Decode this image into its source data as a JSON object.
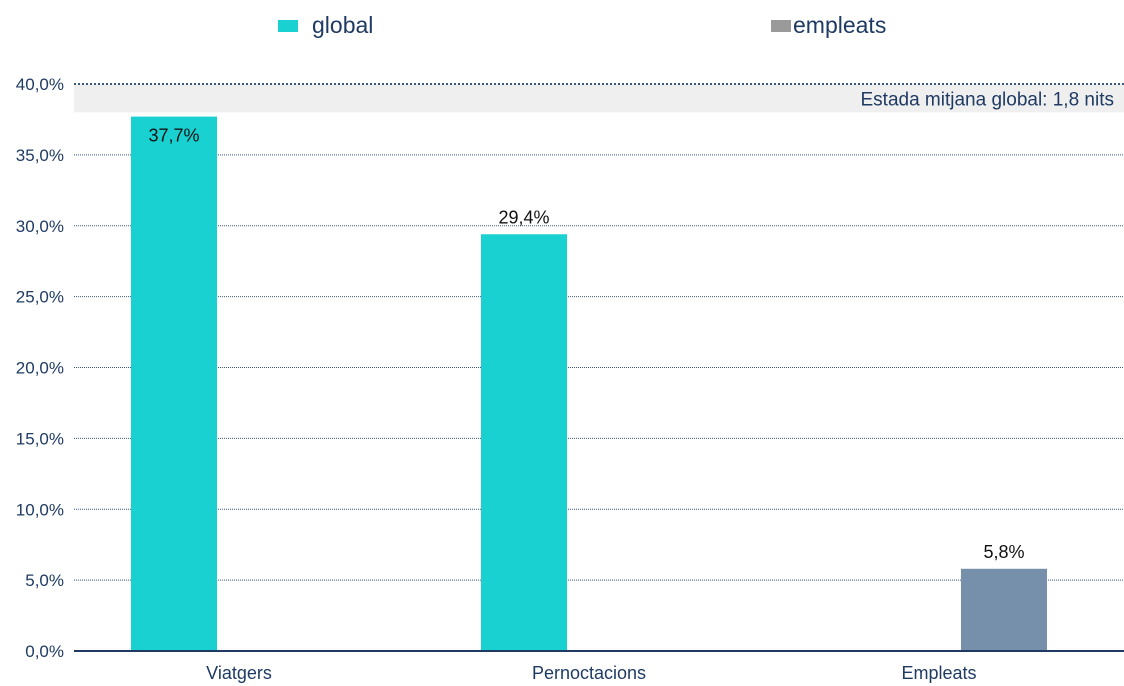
{
  "chart_data": {
    "type": "bar",
    "categories": [
      "Viatgers",
      "Pernoctacions",
      "Empleats"
    ],
    "series": [
      {
        "name": "global",
        "values": [
          37.7,
          29.4,
          null
        ],
        "labels": [
          "37,7%",
          "29,4%",
          ""
        ],
        "color": "#1ad1d2"
      },
      {
        "name": "empleats",
        "values": [
          null,
          null,
          5.8
        ],
        "labels": [
          "",
          "",
          "5,8%"
        ],
        "color": "#7690ab"
      }
    ],
    "legend": {
      "placement": "top",
      "items": [
        {
          "label": "global",
          "color": "#1ad1d2"
        },
        {
          "label": "empleats",
          "color": "#9a9a9a"
        }
      ]
    },
    "yticks": [
      "0,0%",
      "5,0%",
      "10,0%",
      "15,0%",
      "20,0%",
      "25,0%",
      "30,0%",
      "35,0%",
      "40,0%"
    ],
    "ylim": [
      0,
      40
    ],
    "grid": true,
    "annotation": {
      "text": "Estada mitjana global: 1,8 nits",
      "band": [
        38,
        40
      ]
    },
    "colors": {
      "axis": "#1f3b63",
      "grid": "#3a5a80",
      "band": "#efefef"
    }
  }
}
